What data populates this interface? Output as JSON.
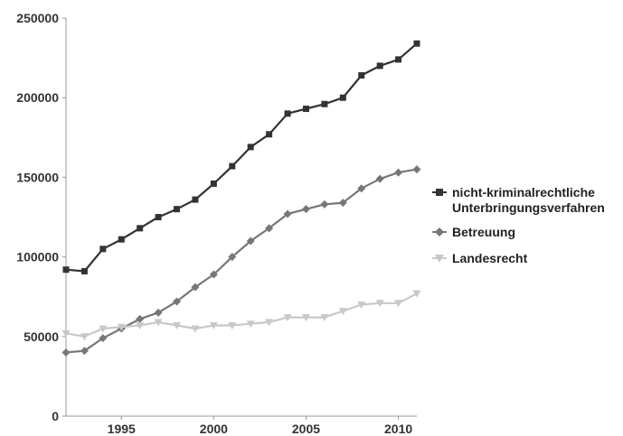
{
  "chart_data": {
    "type": "line",
    "title": "",
    "xlabel": "",
    "ylabel": "",
    "xlim": [
      1992,
      2011
    ],
    "ylim": [
      0,
      250000
    ],
    "y_ticks": [
      {
        "value": 0,
        "label": "0"
      },
      {
        "value": 50000,
        "label": "50000"
      },
      {
        "value": 100000,
        "label": "100000"
      },
      {
        "value": 150000,
        "label": "150000"
      },
      {
        "value": 200000,
        "label": "200000"
      },
      {
        "value": 250000,
        "label": "250000"
      }
    ],
    "x_ticks": [
      {
        "value": 1995,
        "label": "1995"
      },
      {
        "value": 2000,
        "label": "2000"
      },
      {
        "value": 2005,
        "label": "2005"
      },
      {
        "value": 2010,
        "label": "2010"
      }
    ],
    "grid": false,
    "legend_position": "right",
    "x": [
      1992,
      1993,
      1994,
      1995,
      1996,
      1997,
      1998,
      1999,
      2000,
      2001,
      2002,
      2003,
      2004,
      2005,
      2006,
      2007,
      2008,
      2009,
      2010,
      2011
    ],
    "series": [
      {
        "name": "nicht-kriminalrechtliche Unterbringungsverfahren",
        "legend_lines": [
          "nicht-kriminalrechtliche",
          "Unterbringungsverfahren"
        ],
        "marker": "square",
        "color": "#333333",
        "values": [
          92000,
          91000,
          105000,
          111000,
          118000,
          125000,
          130000,
          136000,
          146000,
          157000,
          169000,
          177000,
          190000,
          193000,
          196000,
          200000,
          214000,
          220000,
          224000,
          234000
        ]
      },
      {
        "name": "Betreuung",
        "legend_lines": [
          "Betreuung"
        ],
        "marker": "diamond",
        "color": "#777777",
        "values": [
          40000,
          41000,
          49000,
          55000,
          61000,
          65000,
          72000,
          81000,
          89000,
          100000,
          110000,
          118000,
          127000,
          130000,
          133000,
          134000,
          143000,
          149000,
          153000,
          155000
        ]
      },
      {
        "name": "Landesrecht",
        "legend_lines": [
          "Landesrecht"
        ],
        "marker": "triangle-down",
        "color": "#c8c8c8",
        "values": [
          52000,
          50000,
          55000,
          56000,
          57000,
          59000,
          57000,
          55000,
          57000,
          57000,
          58000,
          59000,
          62000,
          62000,
          62000,
          66000,
          70000,
          71000,
          71000,
          77000
        ]
      }
    ]
  }
}
